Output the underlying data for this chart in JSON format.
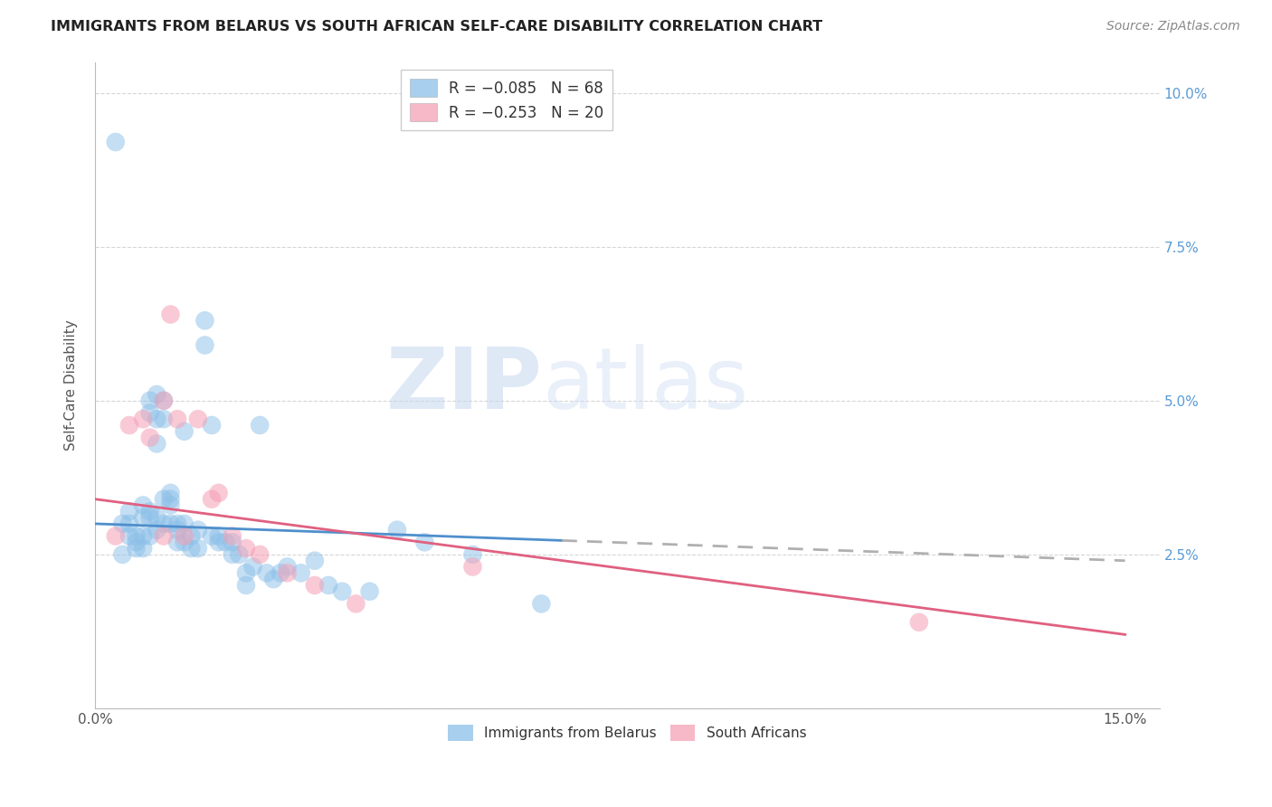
{
  "title": "IMMIGRANTS FROM BELARUS VS SOUTH AFRICAN SELF-CARE DISABILITY CORRELATION CHART",
  "source": "Source: ZipAtlas.com",
  "ylabel": "Self-Care Disability",
  "watermark_zip": "ZIP",
  "watermark_atlas": "atlas",
  "xlim": [
    0.0,
    0.155
  ],
  "ylim": [
    0.0,
    0.105
  ],
  "legend_entries": [
    {
      "label": "R = −0.085   N = 68",
      "color": "#a8c8f0"
    },
    {
      "label": "R = −0.253   N = 20",
      "color": "#f5a0b5"
    }
  ],
  "legend_labels_bottom": [
    "Immigrants from Belarus",
    "South Africans"
  ],
  "series1_color": "#8bbfe8",
  "series2_color": "#f5a0b5",
  "trendline1_color": "#4f8fcc",
  "trendline2_color": "#e06080",
  "trendline_dashed_color": "#b0b0b0",
  "background_color": "#ffffff",
  "grid_color": "#cccccc",
  "title_color": "#222222",
  "right_axis_color": "#5b9bd5",
  "series1_x": [
    0.003,
    0.004,
    0.004,
    0.005,
    0.005,
    0.005,
    0.006,
    0.006,
    0.006,
    0.007,
    0.007,
    0.007,
    0.007,
    0.008,
    0.008,
    0.008,
    0.008,
    0.008,
    0.009,
    0.009,
    0.009,
    0.009,
    0.009,
    0.01,
    0.01,
    0.01,
    0.01,
    0.011,
    0.011,
    0.011,
    0.011,
    0.012,
    0.012,
    0.012,
    0.013,
    0.013,
    0.013,
    0.014,
    0.014,
    0.015,
    0.015,
    0.016,
    0.016,
    0.017,
    0.017,
    0.018,
    0.018,
    0.019,
    0.02,
    0.02,
    0.021,
    0.022,
    0.022,
    0.023,
    0.024,
    0.025,
    0.026,
    0.027,
    0.028,
    0.03,
    0.032,
    0.034,
    0.036,
    0.04,
    0.044,
    0.048,
    0.055,
    0.065
  ],
  "series1_y": [
    0.092,
    0.03,
    0.025,
    0.032,
    0.03,
    0.028,
    0.028,
    0.027,
    0.026,
    0.033,
    0.031,
    0.028,
    0.026,
    0.05,
    0.048,
    0.032,
    0.031,
    0.028,
    0.051,
    0.047,
    0.043,
    0.031,
    0.029,
    0.05,
    0.047,
    0.034,
    0.03,
    0.035,
    0.034,
    0.033,
    0.03,
    0.03,
    0.029,
    0.027,
    0.045,
    0.03,
    0.027,
    0.028,
    0.026,
    0.029,
    0.026,
    0.063,
    0.059,
    0.046,
    0.028,
    0.028,
    0.027,
    0.027,
    0.027,
    0.025,
    0.025,
    0.022,
    0.02,
    0.023,
    0.046,
    0.022,
    0.021,
    0.022,
    0.023,
    0.022,
    0.024,
    0.02,
    0.019,
    0.019,
    0.029,
    0.027,
    0.025,
    0.017
  ],
  "series2_x": [
    0.003,
    0.005,
    0.007,
    0.008,
    0.01,
    0.01,
    0.011,
    0.012,
    0.013,
    0.015,
    0.017,
    0.018,
    0.02,
    0.022,
    0.024,
    0.028,
    0.032,
    0.038,
    0.055,
    0.12
  ],
  "series2_y": [
    0.028,
    0.046,
    0.047,
    0.044,
    0.028,
    0.05,
    0.064,
    0.047,
    0.028,
    0.047,
    0.034,
    0.035,
    0.028,
    0.026,
    0.025,
    0.022,
    0.02,
    0.017,
    0.023,
    0.014
  ],
  "trendline1_x_solid_end": 0.068,
  "trendline1_start_y": 0.03,
  "trendline1_end_y": 0.024,
  "trendline2_start_y": 0.034,
  "trendline2_end_y": 0.012
}
